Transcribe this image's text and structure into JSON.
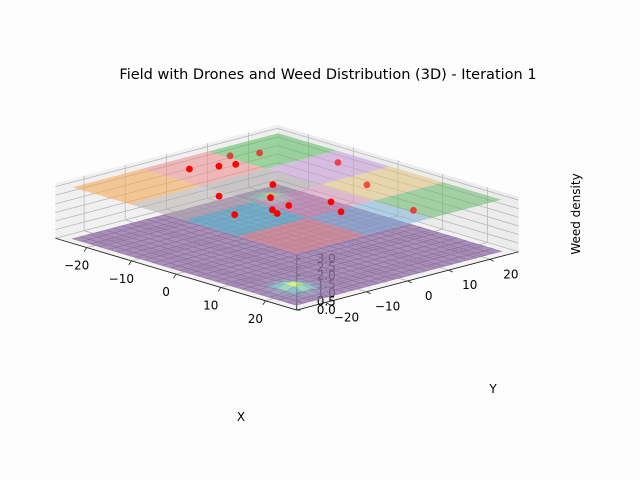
{
  "chart_data": {
    "type": "surface3d",
    "title": "Field with Drones and Weed Distribution (3D) - Iteration 1",
    "xlabel": "X",
    "ylabel": "Y",
    "zlabel": "Weed density",
    "xlim": [
      -27,
      27
    ],
    "ylim": [
      -27,
      27
    ],
    "zlim": [
      0,
      3.2
    ],
    "x_ticks": [
      -20,
      -10,
      0,
      10,
      20
    ],
    "y_ticks": [
      -20,
      -10,
      0,
      10,
      20
    ],
    "z_ticks": [
      "0.0",
      "0.5",
      "1.0",
      "1.5",
      "2.0",
      "2.5",
      "3.0"
    ],
    "x_tick_labels": [
      "−20",
      "−10",
      "0",
      "10",
      "20"
    ],
    "y_tick_labels": [
      "−20",
      "−10",
      "0",
      "10",
      "20"
    ],
    "grid": true,
    "weed_hotspots": [
      {
        "x": -20,
        "y": 18,
        "peak": 0.3
      },
      {
        "x": 18,
        "y": -18,
        "peak": 0.3
      }
    ],
    "drone_plane_z": 3.0,
    "drone_regions": [
      {
        "x0": -25,
        "x1": -12,
        "y0": -25,
        "y1": -8,
        "color": "#f5a54a"
      },
      {
        "x0": -25,
        "x1": -12,
        "y0": -8,
        "y1": 8,
        "color": "#ec8b8c"
      },
      {
        "x0": -25,
        "x1": -12,
        "y0": 8,
        "y1": 25,
        "color": "#58b95a"
      },
      {
        "x0": -12,
        "x1": 0,
        "y0": -25,
        "y1": -8,
        "color": "#b4b2b0"
      },
      {
        "x0": -12,
        "x1": 0,
        "y0": -8,
        "y1": 8,
        "color": "#a6a2a2"
      },
      {
        "x0": -12,
        "x1": 0,
        "y0": 8,
        "y1": 25,
        "color": "#c498d6"
      },
      {
        "x0": 0,
        "x1": 12,
        "y0": -25,
        "y1": -8,
        "color": "#4ec3d2"
      },
      {
        "x0": 0,
        "x1": 12,
        "y0": -8,
        "y1": 8,
        "color": "#d38fb6"
      },
      {
        "x0": 0,
        "x1": 12,
        "y0": 8,
        "y1": 25,
        "color": "#e4c27a"
      },
      {
        "x0": 12,
        "x1": 25,
        "y0": -25,
        "y1": -8,
        "color": "#e58a8a"
      },
      {
        "x0": 12,
        "x1": 25,
        "y0": -8,
        "y1": 8,
        "color": "#7fb3d8"
      },
      {
        "x0": 12,
        "x1": 25,
        "y0": 8,
        "y1": 25,
        "color": "#66b86a"
      }
    ],
    "drones": [
      {
        "x": -20,
        "y": -2,
        "z": 3.0
      },
      {
        "x": -18,
        "y": 3,
        "z": 3.0
      },
      {
        "x": -17,
        "y": 6,
        "z": 3.0
      },
      {
        "x": -21,
        "y": 9,
        "z": 3.0
      },
      {
        "x": -19,
        "y": 14,
        "z": 3.0
      },
      {
        "x": -7,
        "y": 20,
        "z": 3.0
      },
      {
        "x": -5,
        "y": 2,
        "z": 3.0
      },
      {
        "x": -6,
        "y": -10,
        "z": 3.0
      },
      {
        "x": 0,
        "y": -4,
        "z": 3.0
      },
      {
        "x": 5,
        "y": -5,
        "z": 3.0
      },
      {
        "x": 5,
        "y": -9,
        "z": 3.0
      },
      {
        "x": 7,
        "y": -10,
        "z": 3.0
      },
      {
        "x": 3,
        "y": -16,
        "z": 3.0
      },
      {
        "x": 8,
        "y": 2,
        "z": 3.0
      },
      {
        "x": 5,
        "y": 14,
        "z": 3.0
      },
      {
        "x": 20,
        "y": 9,
        "z": 3.0
      },
      {
        "x": 13,
        "y": -1,
        "z": 3.0
      }
    ],
    "colors": {
      "surface_base": "#8f6fa3",
      "hotspot_mid": "#6fc7c2",
      "hotspot_peak": "#dfe867",
      "drone": "#ff0000",
      "grid": "#b8b8b8",
      "pane": "#f2f2f2"
    }
  }
}
